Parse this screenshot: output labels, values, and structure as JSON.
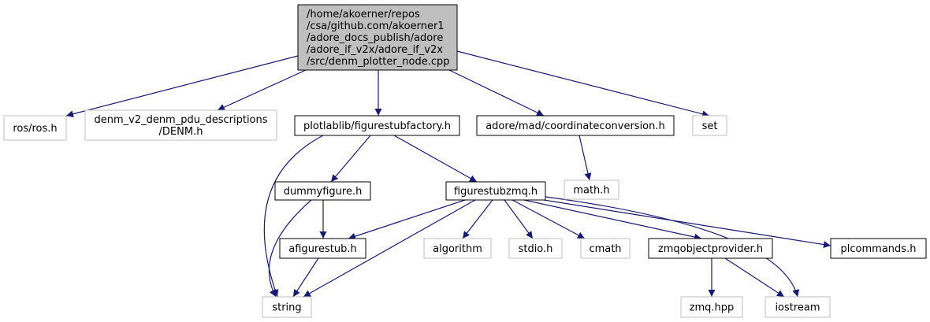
{
  "colors": {
    "edge": "#191970",
    "root_fill": "#bfbfbf",
    "root_border": "#000000",
    "documented_border": "#000000",
    "external_border": "#bfbfbf",
    "node_fill": "#ffffff"
  },
  "nodes": {
    "root": {
      "lines": [
        "/home/akoerner/repos",
        "/csa/github.com/akoerner1",
        "/adore_docs_publish/adore",
        "/adore_if_v2x/adore_if_v2x",
        "/src/denm_plotter_node.cpp"
      ],
      "kind": "root"
    },
    "ros": {
      "lines": [
        "ros/ros.h"
      ],
      "kind": "external"
    },
    "denm": {
      "lines": [
        "denm_v2_denm_pdu_descriptions",
        "/DENM.h"
      ],
      "kind": "external"
    },
    "figurestubfactory": {
      "lines": [
        "plotlablib/figurestubfactory.h"
      ],
      "kind": "documented"
    },
    "coordinateconversion": {
      "lines": [
        "adore/mad/coordinateconversion.h"
      ],
      "kind": "documented"
    },
    "set": {
      "lines": [
        "set"
      ],
      "kind": "external"
    },
    "dummyfigure": {
      "lines": [
        "dummyfigure.h"
      ],
      "kind": "documented"
    },
    "figurestubzmq": {
      "lines": [
        "figurestubzmq.h"
      ],
      "kind": "documented"
    },
    "math": {
      "lines": [
        "math.h"
      ],
      "kind": "external"
    },
    "afigurestub": {
      "lines": [
        "afigurestub.h"
      ],
      "kind": "documented"
    },
    "algorithm": {
      "lines": [
        "algorithm"
      ],
      "kind": "external"
    },
    "stdio": {
      "lines": [
        "stdio.h"
      ],
      "kind": "external"
    },
    "cmath": {
      "lines": [
        "cmath"
      ],
      "kind": "external"
    },
    "zmqobjectprovider": {
      "lines": [
        "zmqobjectprovider.h"
      ],
      "kind": "documented"
    },
    "plcommands": {
      "lines": [
        "plcommands.h"
      ],
      "kind": "documented"
    },
    "string": {
      "lines": [
        "string"
      ],
      "kind": "external"
    },
    "zmqhpp": {
      "lines": [
        "zmq.hpp"
      ],
      "kind": "external"
    },
    "iostream": {
      "lines": [
        "iostream"
      ],
      "kind": "external"
    }
  },
  "edges": [
    [
      "root",
      "ros"
    ],
    [
      "root",
      "denm"
    ],
    [
      "root",
      "figurestubfactory"
    ],
    [
      "root",
      "coordinateconversion"
    ],
    [
      "root",
      "set"
    ],
    [
      "figurestubfactory",
      "dummyfigure"
    ],
    [
      "figurestubfactory",
      "figurestubzmq"
    ],
    [
      "figurestubfactory",
      "string"
    ],
    [
      "coordinateconversion",
      "math"
    ],
    [
      "dummyfigure",
      "afigurestub"
    ],
    [
      "dummyfigure",
      "string"
    ],
    [
      "figurestubzmq",
      "afigurestub"
    ],
    [
      "figurestubzmq",
      "algorithm"
    ],
    [
      "figurestubzmq",
      "stdio"
    ],
    [
      "figurestubzmq",
      "cmath"
    ],
    [
      "figurestubzmq",
      "zmqobjectprovider"
    ],
    [
      "figurestubzmq",
      "plcommands"
    ],
    [
      "figurestubzmq",
      "string"
    ],
    [
      "figurestubzmq",
      "iostream"
    ],
    [
      "afigurestub",
      "string"
    ],
    [
      "zmqobjectprovider",
      "zmqhpp"
    ],
    [
      "zmqobjectprovider",
      "iostream"
    ]
  ]
}
